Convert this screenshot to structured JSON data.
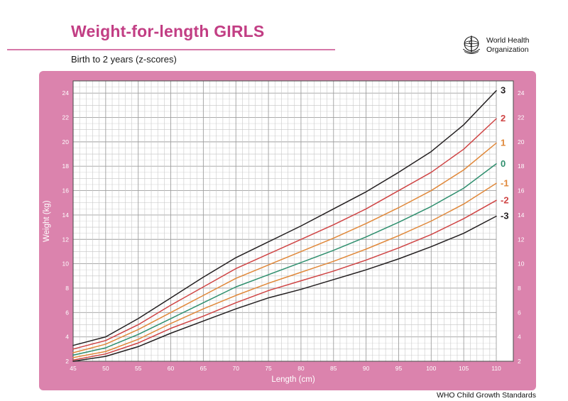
{
  "header": {
    "title": "Weight-for-length GIRLS",
    "subtitle": "Birth to 2 years (z-scores)",
    "logo": {
      "line1": "World Health",
      "line2": "Organization"
    }
  },
  "footer": {
    "note": "WHO Child Growth Standards"
  },
  "colors": {
    "title_accent": "#c23e84",
    "panel_pink": "#db83ad",
    "z3_line": "#231f20",
    "z2_line": "#cf4444",
    "z1_line": "#e0883a",
    "z0_line": "#2f8f6e"
  },
  "chart_data": {
    "type": "line",
    "title": "Weight-for-length GIRLS — Birth to 2 years (z-scores)",
    "xlabel": "Length (cm)",
    "ylabel": "Weight (kg)",
    "xlim": [
      45,
      110
    ],
    "ylim": [
      2,
      25
    ],
    "grid": "on",
    "legend_position": "labels-right-of-curves",
    "x_ticks": [
      45,
      50,
      55,
      60,
      65,
      70,
      75,
      80,
      85,
      90,
      95,
      100,
      105,
      110
    ],
    "y_ticks": [
      2,
      4,
      6,
      8,
      10,
      12,
      14,
      16,
      18,
      20,
      22,
      24
    ],
    "x": [
      45,
      50,
      55,
      60,
      65,
      70,
      75,
      80,
      85,
      90,
      95,
      100,
      105,
      110
    ],
    "series": [
      {
        "name": "3",
        "color": "#231f20",
        "values": [
          3.3,
          4.0,
          5.5,
          7.2,
          8.9,
          10.5,
          11.8,
          13.1,
          14.5,
          15.9,
          17.5,
          19.2,
          21.4,
          24.2
        ]
      },
      {
        "name": "2",
        "color": "#cf4444",
        "values": [
          3.0,
          3.7,
          5.0,
          6.6,
          8.1,
          9.6,
          10.8,
          12.0,
          13.2,
          14.5,
          16.0,
          17.5,
          19.4,
          21.9
        ]
      },
      {
        "name": "1",
        "color": "#e0883a",
        "values": [
          2.7,
          3.4,
          4.6,
          6.0,
          7.4,
          8.8,
          9.9,
          11.0,
          12.1,
          13.3,
          14.6,
          16.0,
          17.7,
          19.9
        ]
      },
      {
        "name": "0",
        "color": "#2f8f6e",
        "values": [
          2.5,
          3.1,
          4.2,
          5.5,
          6.8,
          8.1,
          9.1,
          10.1,
          11.1,
          12.2,
          13.4,
          14.7,
          16.2,
          18.2
        ]
      },
      {
        "name": "-1",
        "color": "#e0883a",
        "values": [
          2.3,
          2.8,
          3.8,
          5.1,
          6.3,
          7.4,
          8.4,
          9.3,
          10.2,
          11.2,
          12.3,
          13.5,
          14.9,
          16.6
        ]
      },
      {
        "name": "-2",
        "color": "#cf4444",
        "values": [
          2.1,
          2.6,
          3.5,
          4.7,
          5.7,
          6.8,
          7.8,
          8.6,
          9.4,
          10.3,
          11.3,
          12.4,
          13.7,
          15.2
        ]
      },
      {
        "name": "-3",
        "color": "#231f20",
        "values": [
          2.0,
          2.4,
          3.2,
          4.3,
          5.3,
          6.3,
          7.2,
          7.9,
          8.7,
          9.5,
          10.4,
          11.4,
          12.5,
          13.9
        ]
      }
    ]
  }
}
